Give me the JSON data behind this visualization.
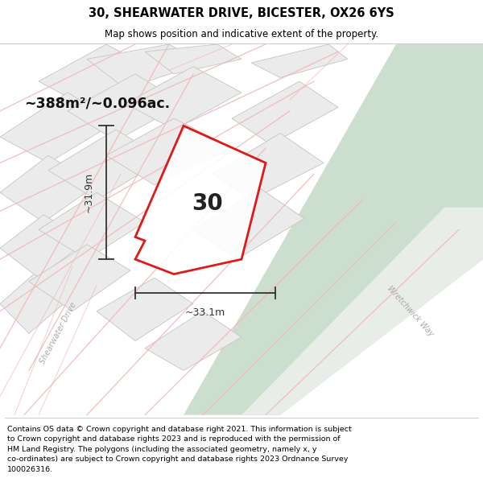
{
  "title": "30, SHEARWATER DRIVE, BICESTER, OX26 6YS",
  "subtitle": "Map shows position and indicative extent of the property.",
  "area_label": "~388m²/~0.096ac.",
  "plot_number": "30",
  "dim_horizontal": "~33.1m",
  "dim_vertical": "~31.9m",
  "footer_lines": [
    "Contains OS data © Crown copyright and database right 2021. This information is subject to Crown copyright and database rights 2023 and is reproduced with the permission of",
    "HM Land Registry. The polygons (including the associated geometry, namely x, y co-ordinates) are subject to Crown copyright and database rights 2023 Ordnance Survey",
    "100026316."
  ],
  "map_bg": "#f5f3f0",
  "plot_fill": "#ffffff",
  "plot_edge": "#dd0000",
  "green_color": "#ccdece",
  "block_fill": "#ebebeb",
  "block_edge": "#c8c4c0",
  "road_line": "#f0b8b8",
  "road_line2": "#e8a8a8",
  "dim_color": "#333333",
  "label_color": "#111111"
}
